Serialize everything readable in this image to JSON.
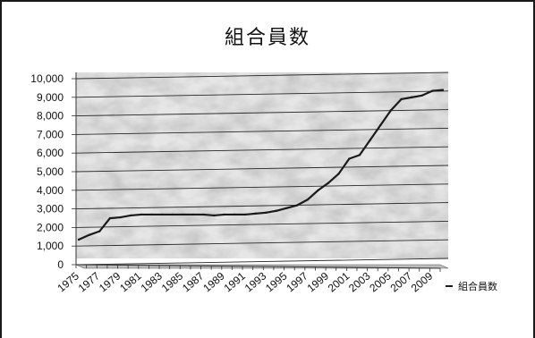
{
  "chart_data": {
    "type": "line",
    "title": "組合員数",
    "xlabel": "",
    "ylabel": "",
    "ylim": [
      0,
      10000
    ],
    "y_ticks": [
      "0",
      "1,000",
      "2,000",
      "3,000",
      "4,000",
      "5,000",
      "6,000",
      "7,000",
      "8,000",
      "9,000",
      "10,000"
    ],
    "x_tick_labels": [
      "1975",
      "1977",
      "1979",
      "1981",
      "1983",
      "1985",
      "1987",
      "1989",
      "1991",
      "1993",
      "1995",
      "1997",
      "1999",
      "2001",
      "2003",
      "2005",
      "2007",
      "2009"
    ],
    "x": [
      1975,
      1976,
      1977,
      1978,
      1979,
      1980,
      1981,
      1982,
      1983,
      1984,
      1985,
      1986,
      1987,
      1988,
      1989,
      1990,
      1991,
      1992,
      1993,
      1994,
      1995,
      1996,
      1997,
      1998,
      1999,
      2000,
      2001,
      2002,
      2003,
      2004,
      2005,
      2006,
      2007,
      2008,
      2009,
      2010
    ],
    "series": [
      {
        "name": "組合員数",
        "values": [
          1250,
          1500,
          1700,
          2400,
          2450,
          2550,
          2600,
          2600,
          2600,
          2600,
          2600,
          2600,
          2600,
          2550,
          2600,
          2600,
          2600,
          2650,
          2700,
          2800,
          2950,
          3100,
          3400,
          3900,
          4300,
          4800,
          5600,
          5800,
          6600,
          7400,
          8200,
          8800,
          8900,
          9000,
          9250,
          9300
        ]
      }
    ],
    "grid": true,
    "legend_position": "right",
    "line_color": "#1a1a1a"
  }
}
